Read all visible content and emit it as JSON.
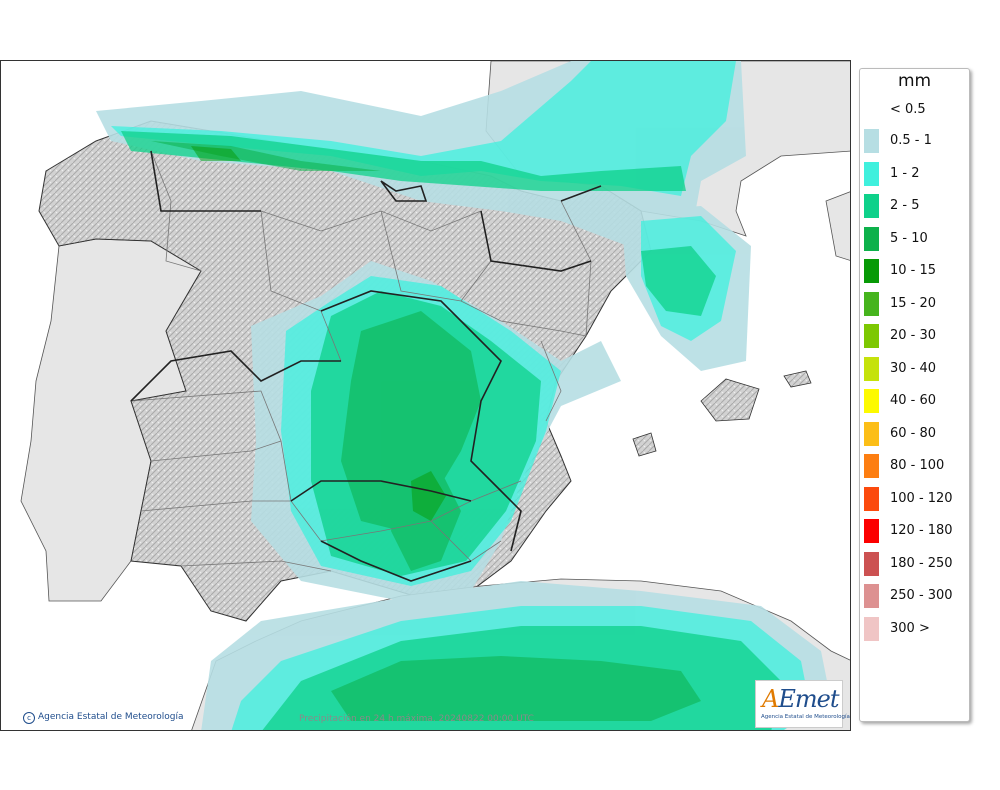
{
  "map": {
    "credit": "Agencia Estatal de Meteorología",
    "caption": "Precipitación en 24 h máxima. 20240822 00:00 UTC",
    "logo_text": "AEmet",
    "logo_subtext": "Agencia Estatal de Meteorología"
  },
  "legend": {
    "unit": "mm",
    "lowest_label": "< 0.5",
    "classes": [
      {
        "label": "0.5 - 1",
        "color": "#b6dee3"
      },
      {
        "label": "1 - 2",
        "color": "#3ff0dd"
      },
      {
        "label": "2 - 5",
        "color": "#0ed18a"
      },
      {
        "label": "5 - 10",
        "color": "#0db14b"
      },
      {
        "label": "10 - 15",
        "color": "#079a06"
      },
      {
        "label": "15 - 20",
        "color": "#46b41d"
      },
      {
        "label": "20 - 30",
        "color": "#7dc802"
      },
      {
        "label": "30 - 40",
        "color": "#c5e20b"
      },
      {
        "label": "40 - 60",
        "color": "#fdfa00"
      },
      {
        "label": "60 - 80",
        "color": "#fcbe17"
      },
      {
        "label": "80 - 100",
        "color": "#fd7e11"
      },
      {
        "label": "100 - 120",
        "color": "#fc4a0d"
      },
      {
        "label": "120 - 180",
        "color": "#fc0000"
      },
      {
        "label": "180 - 250",
        "color": "#cc5151"
      },
      {
        "label": "250 - 300",
        "color": "#dd9191"
      },
      {
        "label": "300 >",
        "color": "#f0c5c5"
      }
    ]
  }
}
